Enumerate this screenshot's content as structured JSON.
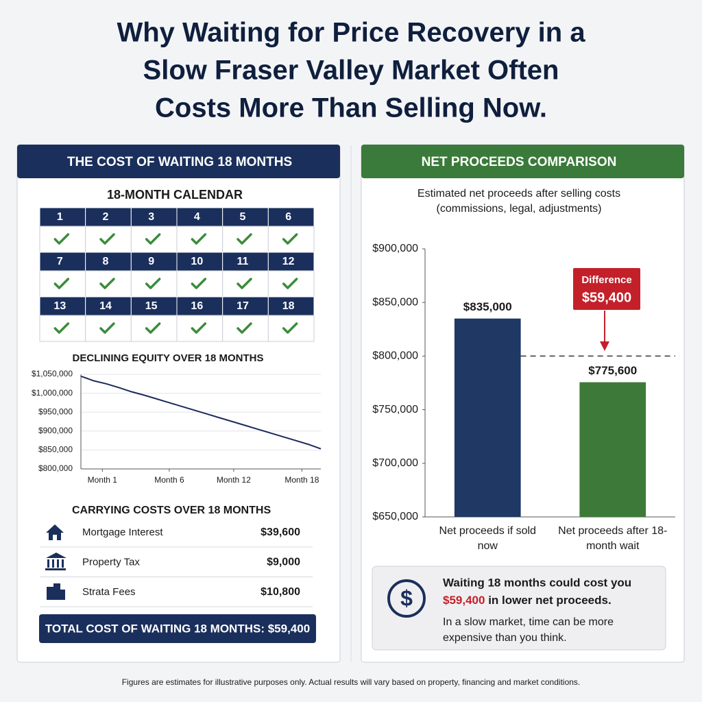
{
  "title_lines": [
    "Why Waiting for Price Recovery in a",
    "Slow Fraser Valley Market Often",
    "Costs More Than Selling Now."
  ],
  "left_panel": {
    "header": "THE COST OF WAITING 18 MONTHS",
    "calendar": {
      "title": "18-MONTH CALENDAR",
      "months": [
        1,
        2,
        3,
        4,
        5,
        6,
        7,
        8,
        9,
        10,
        11,
        12,
        13,
        14,
        15,
        16,
        17,
        18
      ]
    },
    "carrying_costs": {
      "title": "CARRYING COSTS OVER 18 MONTHS",
      "items": [
        {
          "label": "Mortgage Interest",
          "amount": "$39,600"
        },
        {
          "label": "Property Tax",
          "amount": "$9,000"
        },
        {
          "label": "Strata Fees",
          "amount": "$10,800"
        }
      ],
      "total": "TOTAL COST OF WAITING 18 MONTHS: $59,400"
    }
  },
  "right_panel": {
    "header": "NET PROCEEDS COMPARISON",
    "callout": {
      "lead": "Waiting 18 months could cost you",
      "amount": "$59,400",
      "tail": "in lower net proceeds.",
      "note": "In a slow market, time can be more expensive than you think."
    }
  },
  "footnote": "Figures are estimates for illustrative purposes only. Actual results will vary based on property, financing and market conditions.",
  "chart_data": [
    {
      "type": "line",
      "title": "DECLINING EQUITY OVER 18 MONTHS",
      "x": [
        0,
        1,
        2,
        3,
        4,
        5,
        6,
        7,
        8,
        9,
        10,
        11,
        12,
        13,
        14,
        15,
        16,
        17,
        18,
        19
      ],
      "values": [
        1045000,
        1033000,
        1025000,
        1015000,
        1004000,
        995000,
        985000,
        975000,
        965000,
        955000,
        945000,
        935000,
        925000,
        915000,
        905000,
        895000,
        885000,
        875000,
        865000,
        853000
      ],
      "color": "#1b2a5c",
      "xlim": [
        0,
        19
      ],
      "xticks": [
        {
          "value": 1.7,
          "label": "Month 1"
        },
        {
          "value": 7,
          "label": "Month 6"
        },
        {
          "value": 12.1,
          "label": "Month 12"
        },
        {
          "value": 17.5,
          "label": "Month 18"
        }
      ],
      "ylim": [
        800000,
        1050000
      ],
      "yticks": [
        {
          "value": 800000,
          "label": "$800,000"
        },
        {
          "value": 850000,
          "label": "$850,000"
        },
        {
          "value": 900000,
          "label": "$900,000"
        },
        {
          "value": 950000,
          "label": "$950,000"
        },
        {
          "value": 1000000,
          "label": "$1,000,000"
        },
        {
          "value": 1050000,
          "label": "$1,050,000"
        }
      ],
      "grid": true
    },
    {
      "type": "bar",
      "subtitle": "Estimated net proceeds after selling costs (commissions, legal, adjustments)",
      "categories": [
        "Net proceeds if sold now",
        "Net proceeds after 18-month wait"
      ],
      "values": [
        835000,
        775600
      ],
      "value_labels": [
        "$835,000",
        "$775,600"
      ],
      "colors": [
        "#1f3864",
        "#3d7a3a"
      ],
      "ylim": [
        650000,
        900000
      ],
      "yticks": [
        {
          "value": 650000,
          "label": "$650,000"
        },
        {
          "value": 700000,
          "label": "$700,000"
        },
        {
          "value": 750000,
          "label": "$750,000"
        },
        {
          "value": 800000,
          "label": "$800,000"
        },
        {
          "value": 850000,
          "label": "$850,000"
        },
        {
          "value": 900000,
          "label": "$900,000"
        }
      ],
      "reference_line": 800000,
      "annotation": [
        "Difference",
        "$59,400"
      ]
    }
  ]
}
